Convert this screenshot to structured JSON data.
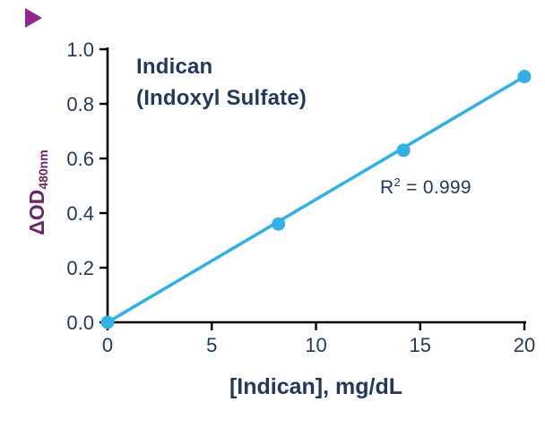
{
  "logo": {
    "icon": "purple-triangle-icon"
  },
  "chart_data": {
    "type": "scatter",
    "title_line1": "Indican",
    "title_line2": "(Indoxyl Sulfate)",
    "xlabel": "[Indican], mg/dL",
    "ylabel_main": "ΔOD",
    "ylabel_sub": "480nm",
    "xlim": [
      0,
      20
    ],
    "ylim": [
      0,
      1.0
    ],
    "x_ticks": [
      "0",
      "5",
      "10",
      "15",
      "20"
    ],
    "y_ticks": [
      "0.0",
      "0.2",
      "0.4",
      "0.6",
      "0.8",
      "1.0"
    ],
    "grid": "off",
    "legend": "none",
    "points": [
      {
        "x": 0,
        "y": 0.0
      },
      {
        "x": 8.2,
        "y": 0.36
      },
      {
        "x": 14.2,
        "y": 0.63
      },
      {
        "x": 20,
        "y": 0.9
      }
    ],
    "trendline": {
      "x1": 0,
      "y1": 0.0,
      "x2": 20,
      "y2": 0.9
    },
    "annotation": {
      "prefix": "R",
      "sup": "2",
      "rest": "= 0.999"
    },
    "colors": {
      "line": "#33B1E4",
      "marker": "#33B1E4",
      "axis": "#000000",
      "text": "#22395B",
      "ylabel": "#6E2466",
      "logo": "#92278F"
    }
  }
}
